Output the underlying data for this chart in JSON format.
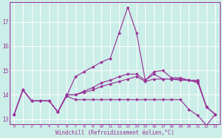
{
  "xlabel": "Windchill (Refroidissement éolien,°C)",
  "background_color": "#cceee8",
  "line_color": "#993399",
  "marker": "D",
  "markersize": 2.0,
  "linewidth": 0.9,
  "xlim": [
    -0.5,
    23.5
  ],
  "ylim": [
    12.8,
    17.8
  ],
  "yticks": [
    13,
    14,
    15,
    16,
    17
  ],
  "ytick_labels": [
    "13",
    "14",
    "15",
    "16",
    "17"
  ],
  "xticks": [
    0,
    1,
    2,
    3,
    4,
    5,
    6,
    7,
    8,
    9,
    10,
    11,
    12,
    13,
    14,
    15,
    16,
    17,
    18,
    19,
    20,
    21,
    22,
    23
  ],
  "series": [
    [
      13.2,
      14.2,
      13.75,
      13.75,
      13.75,
      13.3,
      13.95,
      14.75,
      14.95,
      15.15,
      15.35,
      15.5,
      16.55,
      17.6,
      16.55,
      14.6,
      14.95,
      15.0,
      14.7,
      14.7,
      14.6,
      14.6,
      13.5,
      13.2
    ],
    [
      13.2,
      14.2,
      13.75,
      13.75,
      13.75,
      13.3,
      14.0,
      14.0,
      14.1,
      14.2,
      14.35,
      14.45,
      14.55,
      14.65,
      14.75,
      14.55,
      14.65,
      14.65,
      14.65,
      14.65,
      14.6,
      14.5,
      13.5,
      13.2
    ],
    [
      13.2,
      14.2,
      13.75,
      13.75,
      13.75,
      13.3,
      13.95,
      13.8,
      13.8,
      13.8,
      13.8,
      13.8,
      13.8,
      13.8,
      13.8,
      13.8,
      13.8,
      13.8,
      13.8,
      13.8,
      13.4,
      13.15,
      12.75,
      13.2
    ],
    [
      13.2,
      14.2,
      13.75,
      13.75,
      13.75,
      13.3,
      14.0,
      14.0,
      14.15,
      14.3,
      14.5,
      14.6,
      14.75,
      14.85,
      14.85,
      14.6,
      14.85,
      14.65,
      14.65,
      14.6,
      14.6,
      14.55,
      13.5,
      13.2
    ]
  ]
}
